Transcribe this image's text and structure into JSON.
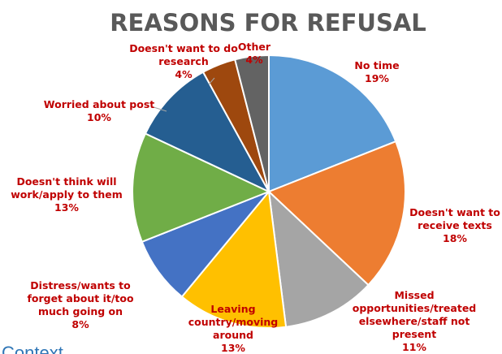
{
  "chart_data": {
    "type": "pie",
    "title": "REASONS FOR REFUSAL",
    "slices": [
      {
        "label_lines": [
          "No time"
        ],
        "value_text": "19%",
        "value": 19,
        "color": "#5b9bd5"
      },
      {
        "label_lines": [
          "Doesn't want to",
          "receive texts"
        ],
        "value_text": "18%",
        "value": 18,
        "color": "#ed7d31"
      },
      {
        "label_lines": [
          "Missed",
          "opportunities/treated",
          "elsewhere/staff not",
          "present"
        ],
        "value_text": "11%",
        "value": 11,
        "color": "#a5a5a5"
      },
      {
        "label_lines": [
          "Leaving",
          "country/moving",
          "around"
        ],
        "value_text": "13%",
        "value": 13,
        "color": "#ffc000"
      },
      {
        "label_lines": [
          "Distress/wants to",
          "forget about it/too",
          "much going on"
        ],
        "value_text": "8%",
        "value": 8,
        "color": "#4472c4"
      },
      {
        "label_lines": [
          "Doesn't think will",
          "work/apply to them"
        ],
        "value_text": "13%",
        "value": 13,
        "color": "#70ad47"
      },
      {
        "label_lines": [
          "Worried about post"
        ],
        "value_text": "10%",
        "value": 10,
        "color": "#255e91"
      },
      {
        "label_lines": [
          "Doesn't want to do",
          "research"
        ],
        "value_text": "4%",
        "value": 4,
        "color": "#9e480e"
      },
      {
        "label_lines": [
          "Other"
        ],
        "value_text": "4%",
        "value": 4,
        "color": "#636363"
      }
    ]
  },
  "cutoff_text": "Context"
}
